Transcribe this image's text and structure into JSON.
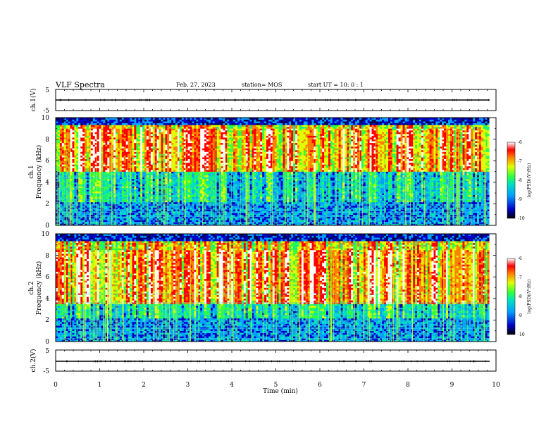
{
  "header": {
    "title": "VLF Spectra",
    "date": "Feb. 27, 2023",
    "station": "station= MOS",
    "start": "start  UT =   10: 0  : 1"
  },
  "chart_data": [
    {
      "type": "line",
      "panel": "ch1-voltage",
      "ylabel": "ch.1(V)",
      "ylim": [
        -5,
        5
      ],
      "yticks": [
        "5",
        "-5"
      ],
      "xlim": [
        0,
        10
      ],
      "series": [
        {
          "x": [
            0,
            9.85
          ],
          "values": [
            0,
            0
          ]
        }
      ]
    },
    {
      "type": "heatmap",
      "panel": "ch1-spectrogram",
      "ylabel": "ch.1\nFrequency (kHz)",
      "ylabel_lines": [
        "ch.1",
        "Frequency (kHz)"
      ],
      "ylim": [
        0,
        10
      ],
      "yticks": [
        "0",
        "2",
        "4",
        "6",
        "8",
        "10"
      ],
      "xlim": [
        0,
        10
      ],
      "data_extent_min": 9.85,
      "colorbar": {
        "label": "log(PSD)(V²/Hz)",
        "ticks": [
          "-6",
          "-7",
          "-8",
          "-9",
          "-10"
        ],
        "range": [
          -10,
          -6
        ]
      },
      "intense_band_khz": [
        5.0,
        9.0
      ]
    },
    {
      "type": "heatmap",
      "panel": "ch2-spectrogram",
      "ylabel": "ch.2\nFrequency (kHz)",
      "ylabel_lines": [
        "ch.2",
        "Frequency (kHz)"
      ],
      "ylim": [
        0,
        10
      ],
      "yticks": [
        "0",
        "2",
        "4",
        "6",
        "8",
        "10"
      ],
      "xlim": [
        0,
        10
      ],
      "data_extent_min": 9.85,
      "colorbar": {
        "label": "log(PSD)(V²/Hz)",
        "ticks": [
          "-6",
          "-7",
          "-8",
          "-9",
          "-10"
        ],
        "range": [
          -10,
          -6
        ]
      },
      "intense_band_khz": [
        3.5,
        8.5
      ]
    },
    {
      "type": "line",
      "panel": "ch2-voltage",
      "ylabel": "ch.2(V)",
      "ylim": [
        -5,
        5
      ],
      "yticks": [
        "5",
        "-5"
      ],
      "xlim": [
        0,
        10
      ],
      "series": [
        {
          "x": [
            0,
            9.85
          ],
          "values": [
            0,
            0
          ]
        }
      ]
    }
  ],
  "xaxis": {
    "label": "Time  (min)",
    "ticks": [
      "0",
      "1",
      "2",
      "3",
      "4",
      "5",
      "6",
      "7",
      "8",
      "9",
      "10"
    ]
  },
  "colors": {
    "colormap": [
      "#00004a",
      "#0000c8",
      "#00a0ff",
      "#00e0c0",
      "#30ff40",
      "#e0ff00",
      "#ff8000",
      "#ff0000",
      "#ffffff"
    ]
  }
}
